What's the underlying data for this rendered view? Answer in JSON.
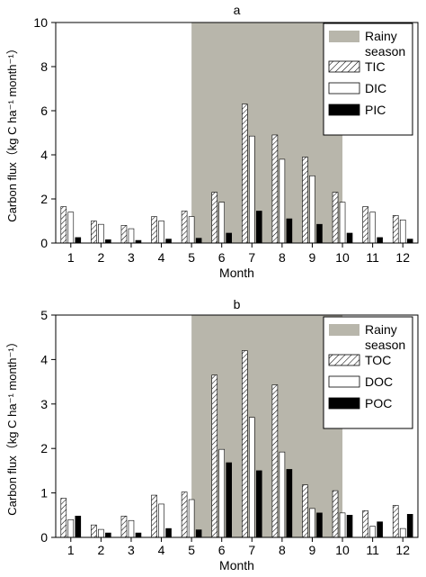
{
  "colors": {
    "rainy_band": "#b8b6ab",
    "solid_bar": "#000000",
    "open_bar": "#ffffff",
    "axis": "#000000"
  },
  "chart_data": [
    {
      "type": "bar",
      "panel_label": "a",
      "xlabel": "Month",
      "ylabel": "Carbon flux（kg C ha⁻¹ month⁻¹）",
      "categories": [
        "1",
        "2",
        "3",
        "4",
        "5",
        "6",
        "7",
        "8",
        "9",
        "10",
        "11",
        "12"
      ],
      "ylim": [
        0,
        10
      ],
      "yticks": [
        "0",
        "2",
        "4",
        "6",
        "8",
        "10"
      ],
      "shaded_region": {
        "name": "Rainy season",
        "from_month": "5",
        "to_month": "10"
      },
      "series": [
        {
          "name": "TIC",
          "pattern": "hatched",
          "values": [
            1.65,
            1.0,
            0.8,
            1.2,
            1.45,
            2.3,
            6.3,
            4.9,
            3.9,
            2.3,
            1.65,
            1.25
          ]
        },
        {
          "name": "DIC",
          "pattern": "open",
          "values": [
            1.4,
            0.85,
            0.65,
            1.0,
            1.2,
            1.85,
            4.85,
            3.8,
            3.05,
            1.85,
            1.4,
            1.05
          ]
        },
        {
          "name": "PIC",
          "pattern": "solid",
          "values": [
            0.25,
            0.15,
            0.12,
            0.18,
            0.22,
            0.45,
            1.45,
            1.1,
            0.85,
            0.45,
            0.25,
            0.18
          ]
        }
      ],
      "legend": {
        "position": "top-right",
        "entries": [
          "Rainy season",
          "TIC",
          "DIC",
          "PIC"
        ]
      }
    },
    {
      "type": "bar",
      "panel_label": "b",
      "xlabel": "Month",
      "ylabel": "Carbon flux（kg C ha⁻¹ month⁻¹）",
      "categories": [
        "1",
        "2",
        "3",
        "4",
        "5",
        "6",
        "7",
        "8",
        "9",
        "10",
        "11",
        "12"
      ],
      "ylim": [
        0,
        5
      ],
      "yticks": [
        "0",
        "1",
        "2",
        "3",
        "4",
        "5"
      ],
      "shaded_region": {
        "name": "Rainy season",
        "from_month": "5",
        "to_month": "10"
      },
      "series": [
        {
          "name": "TOC",
          "pattern": "hatched",
          "values": [
            0.88,
            0.28,
            0.48,
            0.95,
            1.02,
            3.65,
            4.2,
            3.43,
            1.18,
            1.05,
            0.6,
            0.72
          ]
        },
        {
          "name": "DOC",
          "pattern": "open",
          "values": [
            0.4,
            0.18,
            0.38,
            0.75,
            0.85,
            1.98,
            2.7,
            1.92,
            0.65,
            0.55,
            0.25,
            0.2
          ]
        },
        {
          "name": "POC",
          "pattern": "solid",
          "values": [
            0.48,
            0.1,
            0.1,
            0.2,
            0.17,
            1.68,
            1.5,
            1.53,
            0.55,
            0.5,
            0.35,
            0.52
          ]
        }
      ],
      "legend": {
        "position": "top-right",
        "entries": [
          "Rainy season",
          "TOC",
          "DOC",
          "POC"
        ]
      }
    }
  ]
}
